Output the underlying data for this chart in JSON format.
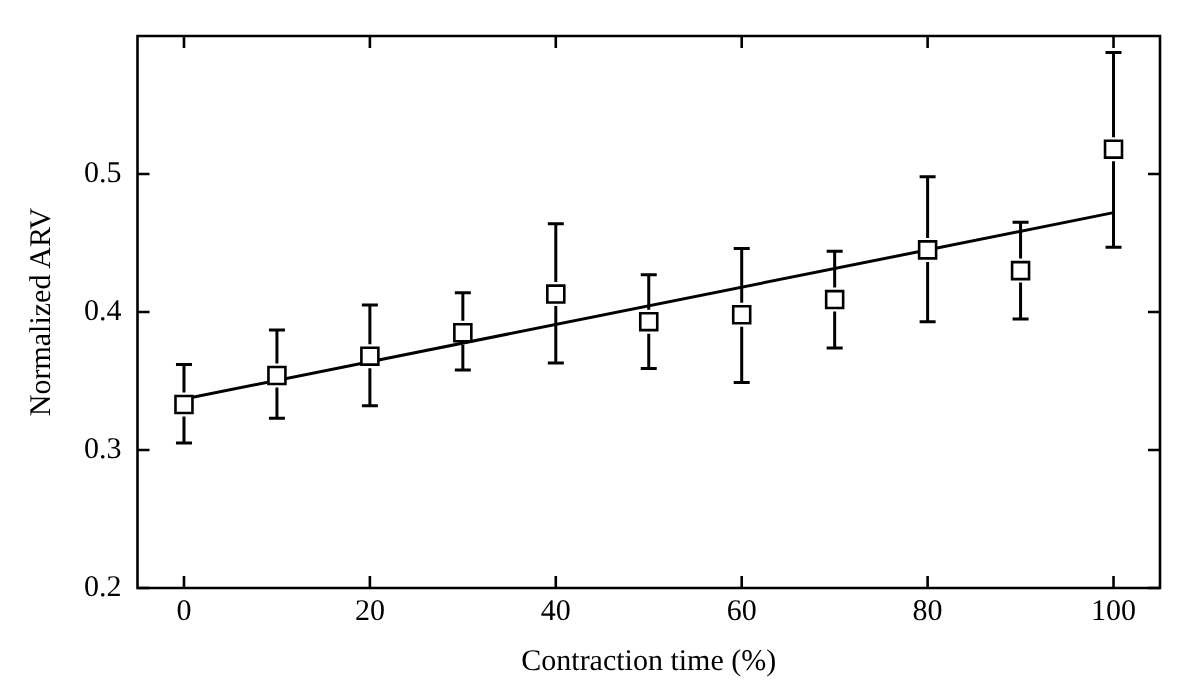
{
  "chart_data": {
    "type": "scatter",
    "xlabel": "Contraction time (%)",
    "ylabel": "Normalized ARV",
    "xlim": [
      -5,
      105
    ],
    "xticks": [
      0,
      20,
      40,
      60,
      80,
      100
    ],
    "ylim": [
      0.2,
      0.6
    ],
    "yticks": [
      0.2,
      0.3,
      0.4,
      0.5
    ],
    "grid": false,
    "legend": false,
    "series": [
      {
        "marker": "square",
        "color": "#000000",
        "x": [
          0,
          10,
          20,
          30,
          40,
          50,
          60,
          70,
          80,
          90,
          100
        ],
        "values": [
          0.333,
          0.354,
          0.368,
          0.385,
          0.413,
          0.393,
          0.398,
          0.409,
          0.445,
          0.43,
          0.518
        ],
        "errors": [
          [
            0.305,
            0.362
          ],
          [
            0.323,
            0.387
          ],
          [
            0.332,
            0.405
          ],
          [
            0.358,
            0.414
          ],
          [
            0.363,
            0.464
          ],
          [
            0.359,
            0.427
          ],
          [
            0.349,
            0.446
          ],
          [
            0.374,
            0.444
          ],
          [
            0.393,
            0.498
          ],
          [
            0.395,
            0.465
          ],
          [
            0.447,
            0.588
          ]
        ]
      },
      {
        "type": "line",
        "marker": "none",
        "color": "#000000",
        "x": [
          0,
          100
        ],
        "values": [
          0.337,
          0.472
        ]
      }
    ]
  }
}
